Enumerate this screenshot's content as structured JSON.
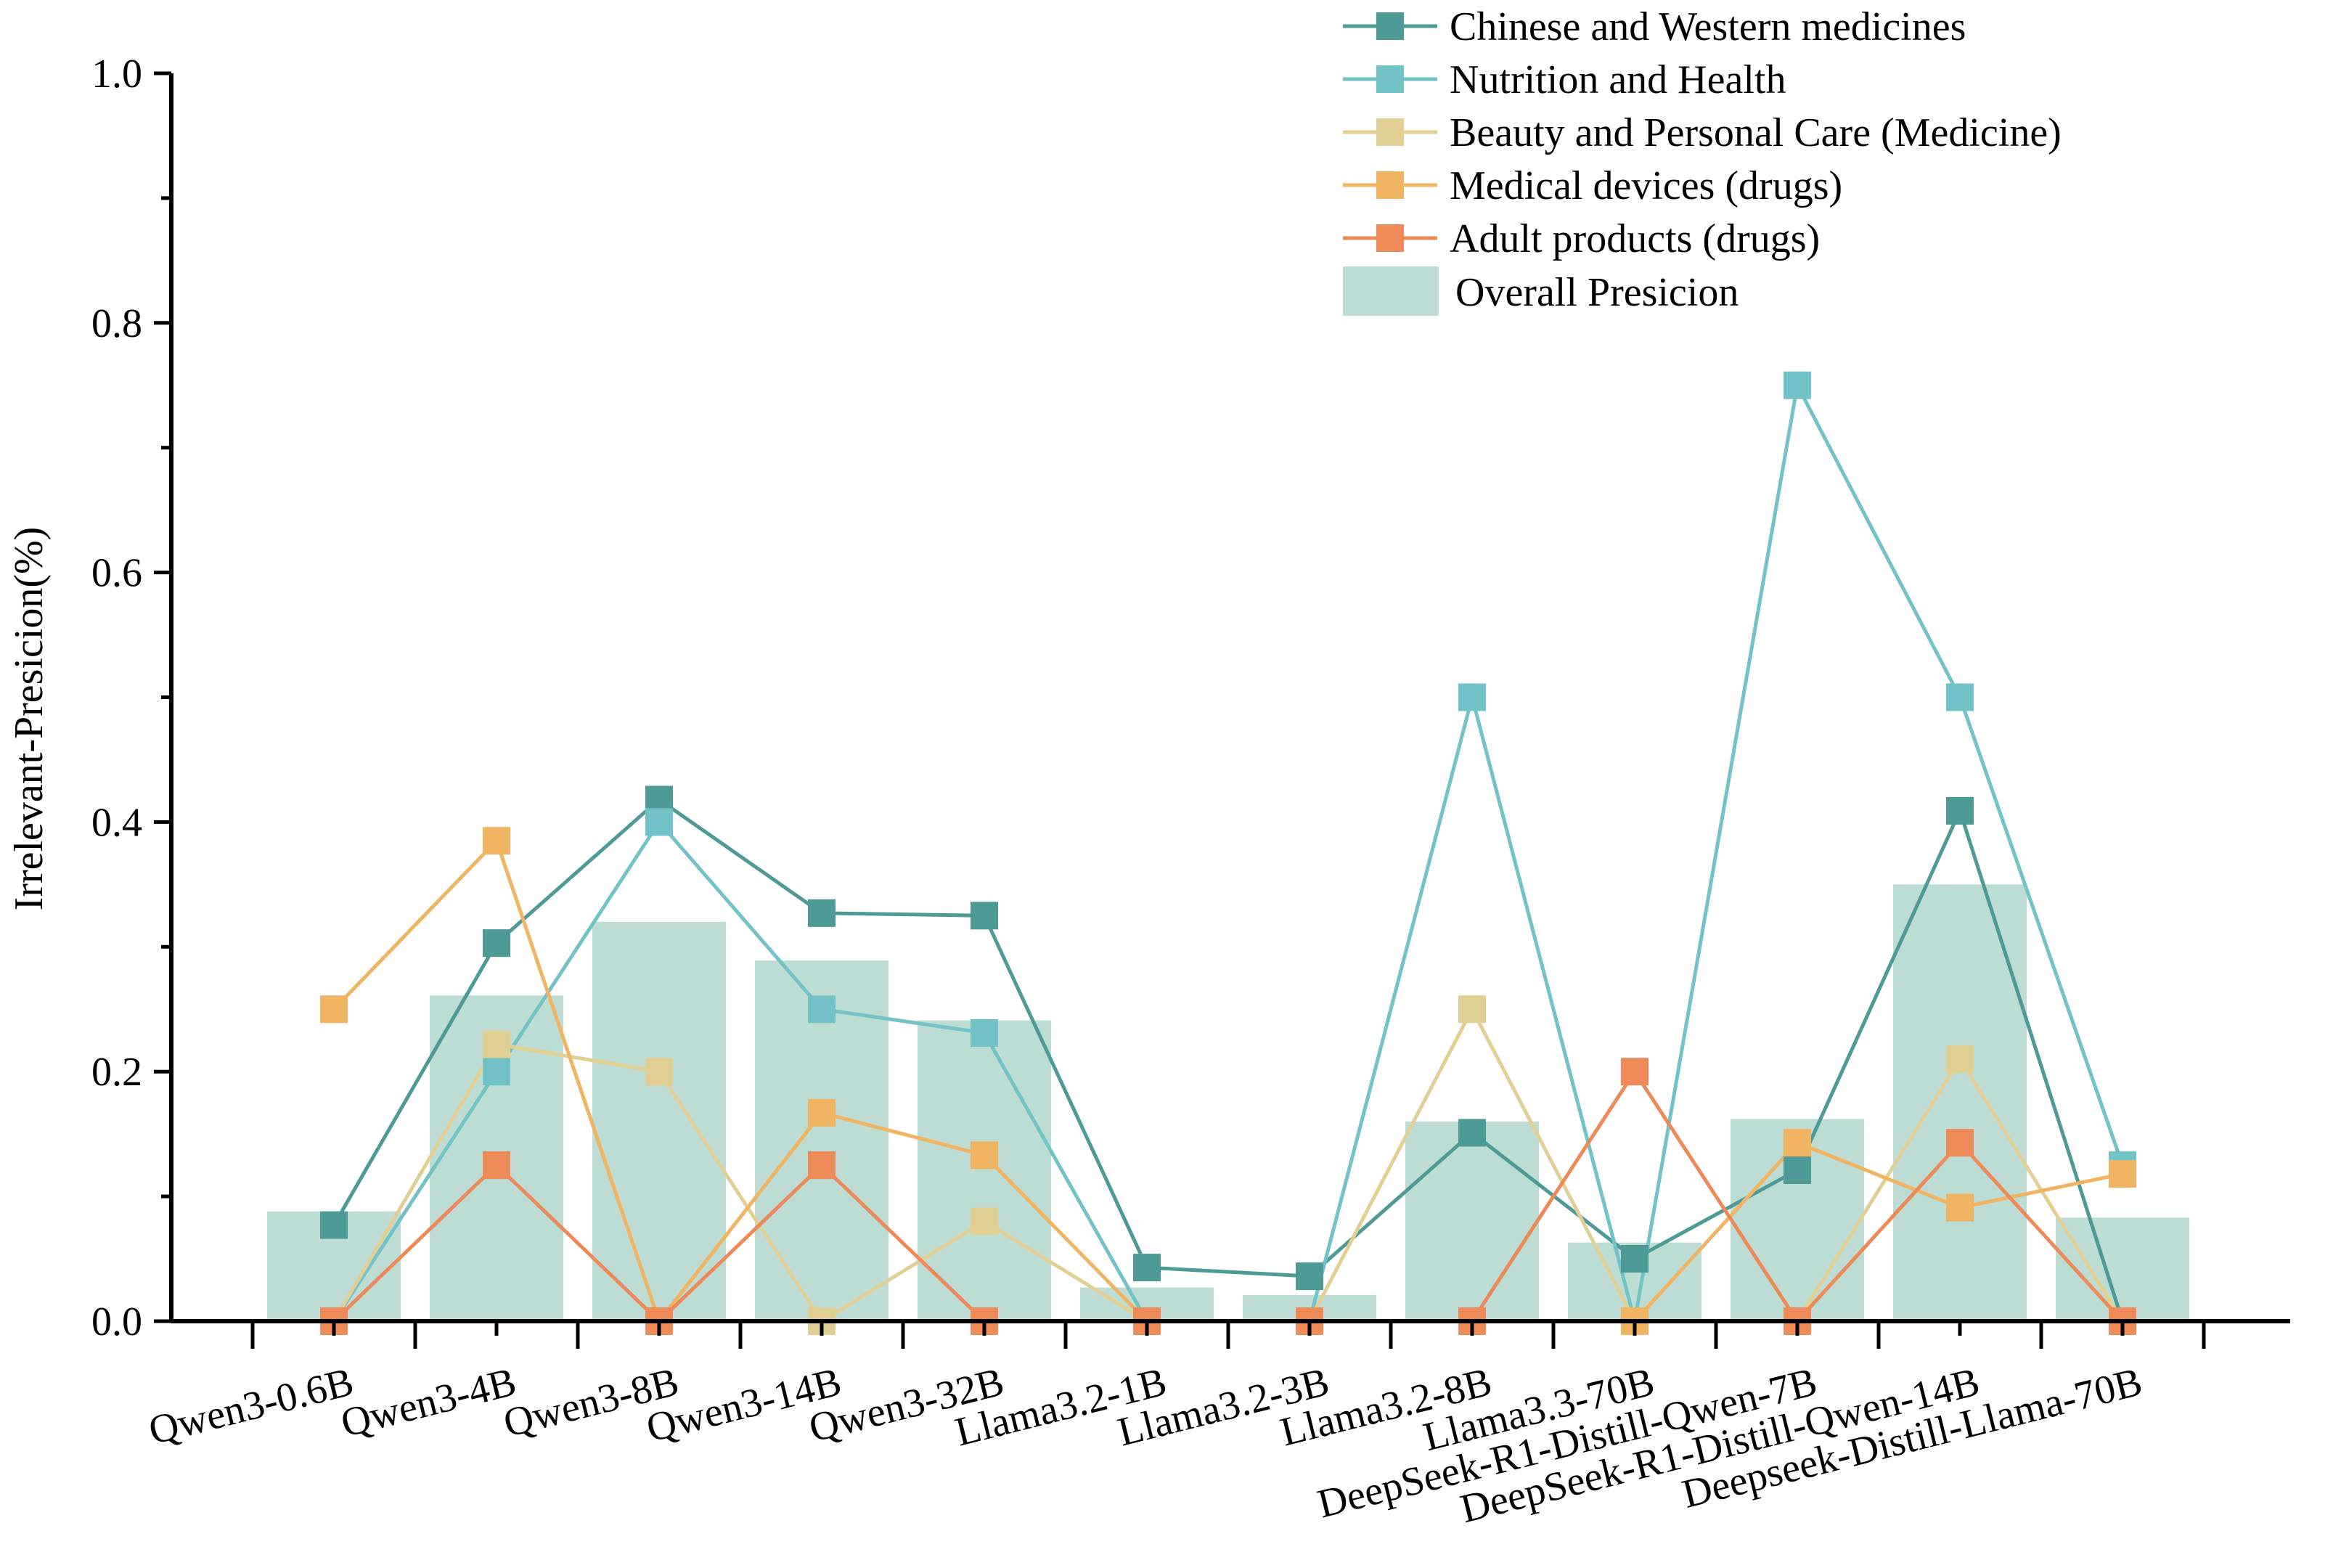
{
  "chart_data": {
    "type": "bar",
    "ylabel": "Irrelevant-Presicion(%)",
    "xlabel": "",
    "ylim": [
      0,
      1.0
    ],
    "yticks": [
      "0.0",
      "0.2",
      "0.4",
      "0.6",
      "0.8",
      "1.0"
    ],
    "grid": false,
    "legend_position": "top-right",
    "categories": [
      "Qwen3-0.6B",
      "Qwen3-4B",
      "Qwen3-8B",
      "Qwen3-14B",
      "Qwen3-32B",
      "Llama3.2-1B",
      "Llama3.2-3B",
      "Llama3.2-8B",
      "Llama3.3-70B",
      "DeepSeek-R1-Distill-Qwen-7B",
      "DeepSeek-R1-Distill-Qwen-14B",
      "Deepseek-Distill-Llama-70B"
    ],
    "bar_series": {
      "name": "Overall Presicion",
      "color": "#bcdcd4",
      "values": [
        0.088,
        0.261,
        0.32,
        0.289,
        0.241,
        0.027,
        0.021,
        0.16,
        0.063,
        0.162,
        0.35,
        0.083
      ]
    },
    "series": [
      {
        "name": "Chinese and Western medicines",
        "color": "#4d9a96",
        "values": [
          0.077,
          0.303,
          0.418,
          0.327,
          0.325,
          0.043,
          0.036,
          0.151,
          0.05,
          0.121,
          0.409,
          0.0
        ]
      },
      {
        "name": "Nutrition and Health",
        "color": "#72c3c8",
        "values": [
          0.0,
          0.2,
          0.4,
          0.25,
          0.231,
          0.0,
          0.0,
          0.5,
          0.0,
          0.75,
          0.5,
          0.125
        ]
      },
      {
        "name": "Beauty and Personal Care (Medicine)",
        "color": "#e2cf94",
        "values": [
          0.0,
          0.222,
          0.2,
          0.0,
          0.08,
          0.0,
          0.0,
          0.25,
          0.0,
          0.0,
          0.21,
          0.0
        ]
      },
      {
        "name": "Medical devices (drugs)",
        "color": "#f0b462",
        "values": [
          0.25,
          0.385,
          0.0,
          0.167,
          0.133,
          0.0,
          0.0,
          0.0,
          0.0,
          0.143,
          0.091,
          0.118
        ]
      },
      {
        "name": "Adult products (drugs)",
        "color": "#ee8a58",
        "values": [
          0.0,
          0.125,
          0.0,
          0.125,
          0.0,
          0.0,
          0.0,
          0.0,
          0.2,
          0.0,
          0.143,
          0.0
        ]
      }
    ]
  }
}
